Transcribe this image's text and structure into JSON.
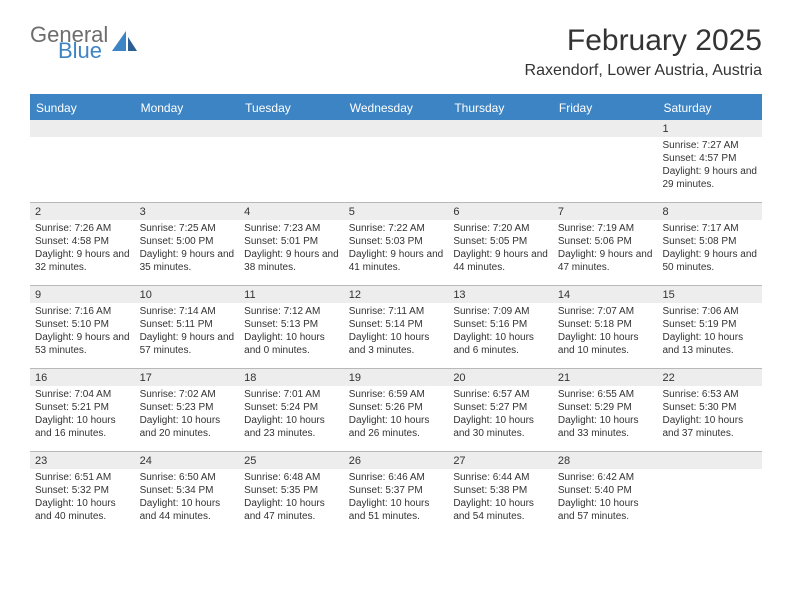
{
  "brand": {
    "line1": "General",
    "line2": "Blue"
  },
  "title": "February 2025",
  "location": "Raxendorf, Lower Austria, Austria",
  "colors": {
    "accent": "#3d84c4",
    "header_text": "#ffffff",
    "daybar_bg": "#ededed",
    "border": "#b8b8b8",
    "text": "#333333",
    "logo_gray": "#6d6d6d"
  },
  "weekdays": [
    "Sunday",
    "Monday",
    "Tuesday",
    "Wednesday",
    "Thursday",
    "Friday",
    "Saturday"
  ],
  "weeks": [
    [
      {
        "n": "",
        "lines": []
      },
      {
        "n": "",
        "lines": []
      },
      {
        "n": "",
        "lines": []
      },
      {
        "n": "",
        "lines": []
      },
      {
        "n": "",
        "lines": []
      },
      {
        "n": "",
        "lines": []
      },
      {
        "n": "1",
        "lines": [
          "Sunrise: 7:27 AM",
          "Sunset: 4:57 PM",
          "Daylight: 9 hours and 29 minutes."
        ]
      }
    ],
    [
      {
        "n": "2",
        "lines": [
          "Sunrise: 7:26 AM",
          "Sunset: 4:58 PM",
          "Daylight: 9 hours and 32 minutes."
        ]
      },
      {
        "n": "3",
        "lines": [
          "Sunrise: 7:25 AM",
          "Sunset: 5:00 PM",
          "Daylight: 9 hours and 35 minutes."
        ]
      },
      {
        "n": "4",
        "lines": [
          "Sunrise: 7:23 AM",
          "Sunset: 5:01 PM",
          "Daylight: 9 hours and 38 minutes."
        ]
      },
      {
        "n": "5",
        "lines": [
          "Sunrise: 7:22 AM",
          "Sunset: 5:03 PM",
          "Daylight: 9 hours and 41 minutes."
        ]
      },
      {
        "n": "6",
        "lines": [
          "Sunrise: 7:20 AM",
          "Sunset: 5:05 PM",
          "Daylight: 9 hours and 44 minutes."
        ]
      },
      {
        "n": "7",
        "lines": [
          "Sunrise: 7:19 AM",
          "Sunset: 5:06 PM",
          "Daylight: 9 hours and 47 minutes."
        ]
      },
      {
        "n": "8",
        "lines": [
          "Sunrise: 7:17 AM",
          "Sunset: 5:08 PM",
          "Daylight: 9 hours and 50 minutes."
        ]
      }
    ],
    [
      {
        "n": "9",
        "lines": [
          "Sunrise: 7:16 AM",
          "Sunset: 5:10 PM",
          "Daylight: 9 hours and 53 minutes."
        ]
      },
      {
        "n": "10",
        "lines": [
          "Sunrise: 7:14 AM",
          "Sunset: 5:11 PM",
          "Daylight: 9 hours and 57 minutes."
        ]
      },
      {
        "n": "11",
        "lines": [
          "Sunrise: 7:12 AM",
          "Sunset: 5:13 PM",
          "Daylight: 10 hours and 0 minutes."
        ]
      },
      {
        "n": "12",
        "lines": [
          "Sunrise: 7:11 AM",
          "Sunset: 5:14 PM",
          "Daylight: 10 hours and 3 minutes."
        ]
      },
      {
        "n": "13",
        "lines": [
          "Sunrise: 7:09 AM",
          "Sunset: 5:16 PM",
          "Daylight: 10 hours and 6 minutes."
        ]
      },
      {
        "n": "14",
        "lines": [
          "Sunrise: 7:07 AM",
          "Sunset: 5:18 PM",
          "Daylight: 10 hours and 10 minutes."
        ]
      },
      {
        "n": "15",
        "lines": [
          "Sunrise: 7:06 AM",
          "Sunset: 5:19 PM",
          "Daylight: 10 hours and 13 minutes."
        ]
      }
    ],
    [
      {
        "n": "16",
        "lines": [
          "Sunrise: 7:04 AM",
          "Sunset: 5:21 PM",
          "Daylight: 10 hours and 16 minutes."
        ]
      },
      {
        "n": "17",
        "lines": [
          "Sunrise: 7:02 AM",
          "Sunset: 5:23 PM",
          "Daylight: 10 hours and 20 minutes."
        ]
      },
      {
        "n": "18",
        "lines": [
          "Sunrise: 7:01 AM",
          "Sunset: 5:24 PM",
          "Daylight: 10 hours and 23 minutes."
        ]
      },
      {
        "n": "19",
        "lines": [
          "Sunrise: 6:59 AM",
          "Sunset: 5:26 PM",
          "Daylight: 10 hours and 26 minutes."
        ]
      },
      {
        "n": "20",
        "lines": [
          "Sunrise: 6:57 AM",
          "Sunset: 5:27 PM",
          "Daylight: 10 hours and 30 minutes."
        ]
      },
      {
        "n": "21",
        "lines": [
          "Sunrise: 6:55 AM",
          "Sunset: 5:29 PM",
          "Daylight: 10 hours and 33 minutes."
        ]
      },
      {
        "n": "22",
        "lines": [
          "Sunrise: 6:53 AM",
          "Sunset: 5:30 PM",
          "Daylight: 10 hours and 37 minutes."
        ]
      }
    ],
    [
      {
        "n": "23",
        "lines": [
          "Sunrise: 6:51 AM",
          "Sunset: 5:32 PM",
          "Daylight: 10 hours and 40 minutes."
        ]
      },
      {
        "n": "24",
        "lines": [
          "Sunrise: 6:50 AM",
          "Sunset: 5:34 PM",
          "Daylight: 10 hours and 44 minutes."
        ]
      },
      {
        "n": "25",
        "lines": [
          "Sunrise: 6:48 AM",
          "Sunset: 5:35 PM",
          "Daylight: 10 hours and 47 minutes."
        ]
      },
      {
        "n": "26",
        "lines": [
          "Sunrise: 6:46 AM",
          "Sunset: 5:37 PM",
          "Daylight: 10 hours and 51 minutes."
        ]
      },
      {
        "n": "27",
        "lines": [
          "Sunrise: 6:44 AM",
          "Sunset: 5:38 PM",
          "Daylight: 10 hours and 54 minutes."
        ]
      },
      {
        "n": "28",
        "lines": [
          "Sunrise: 6:42 AM",
          "Sunset: 5:40 PM",
          "Daylight: 10 hours and 57 minutes."
        ]
      },
      {
        "n": "",
        "lines": []
      }
    ]
  ]
}
